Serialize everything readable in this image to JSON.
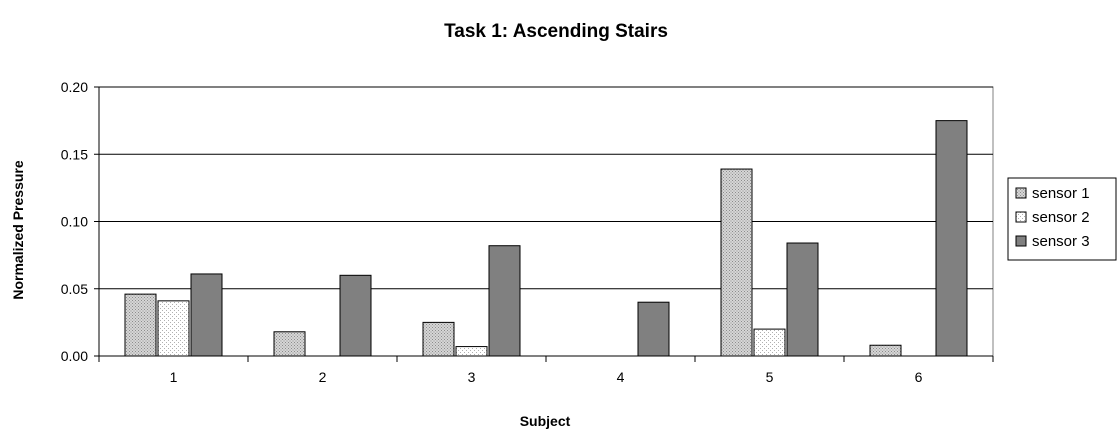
{
  "chart_data": {
    "type": "bar",
    "title": "Task 1: Ascending Stairs",
    "xlabel": "Subject",
    "ylabel": "Normalized Pressure",
    "categories": [
      "1",
      "2",
      "3",
      "4",
      "5",
      "6"
    ],
    "ylim": [
      0,
      0.2
    ],
    "yticks": [
      "0.00",
      "0.05",
      "0.10",
      "0.15",
      "0.20"
    ],
    "grid": true,
    "legend_position": "right",
    "series": [
      {
        "name": "sensor 1",
        "values": [
          0.046,
          0.018,
          0.025,
          0.0,
          0.139,
          0.008
        ],
        "color": "#c8c8c8",
        "pattern": "dense-dots"
      },
      {
        "name": "sensor 2",
        "values": [
          0.041,
          0.0,
          0.007,
          0.0,
          0.02,
          0.0
        ],
        "color": "#f4f4f4",
        "pattern": "sparse-dots"
      },
      {
        "name": "sensor 3",
        "values": [
          0.061,
          0.06,
          0.082,
          0.04,
          0.084,
          0.175
        ],
        "color": "#808080",
        "pattern": "solid"
      }
    ]
  }
}
